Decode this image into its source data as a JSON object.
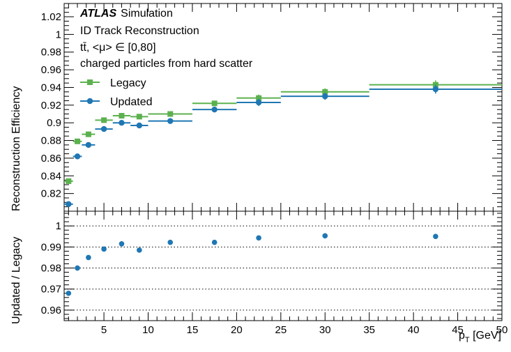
{
  "chart_data": {
    "type": "scatter",
    "annotations": {
      "experiment": "ATLAS",
      "label": "Simulation",
      "line1": "ID Track Reconstruction",
      "line2": "tt̄, <μ> ∈ [0,80]",
      "line3": "charged particles from hard scatter"
    },
    "x_bins": [
      [
        0.5,
        1.5
      ],
      [
        1.5,
        2.5
      ],
      [
        2.5,
        4
      ],
      [
        4,
        6
      ],
      [
        6,
        8
      ],
      [
        8,
        10
      ],
      [
        10,
        15
      ],
      [
        15,
        20
      ],
      [
        20,
        25
      ],
      [
        25,
        35
      ],
      [
        35,
        50
      ]
    ],
    "top": {
      "ylabel": "Reconstruction Efficiency",
      "ylim": [
        0.8,
        1.035
      ],
      "yticks": [
        "0.82",
        "0.84",
        "0.86",
        "0.88",
        "0.9",
        "0.92",
        "0.94",
        "0.96",
        "0.98",
        "1",
        "1.02"
      ],
      "series": [
        {
          "name": "Legacy",
          "color": "#5cb14f",
          "marker": "square",
          "values": [
            0.834,
            0.879,
            0.887,
            0.903,
            0.908,
            0.907,
            0.91,
            0.922,
            0.928,
            0.935,
            0.943
          ],
          "errors": [
            0.002,
            0.002,
            0.002,
            0.002,
            0.002,
            0.003,
            0.002,
            0.003,
            0.004,
            0.004,
            0.005
          ]
        },
        {
          "name": "Updated",
          "color": "#1f77b4",
          "marker": "circle",
          "values": [
            0.808,
            0.862,
            0.875,
            0.893,
            0.9,
            0.897,
            0.902,
            0.915,
            0.923,
            0.93,
            0.938
          ],
          "errors": [
            0.002,
            0.002,
            0.002,
            0.002,
            0.002,
            0.003,
            0.002,
            0.003,
            0.004,
            0.004,
            0.005
          ]
        }
      ]
    },
    "bottom": {
      "ylabel": "Updated / Legacy",
      "ylim": [
        0.955,
        1.007
      ],
      "yticks": [
        "0.96",
        "0.97",
        "0.98",
        "0.99",
        "1"
      ],
      "gridlines": [
        0.96,
        0.97,
        0.98,
        0.99,
        1.0
      ],
      "color": "#1f77b4",
      "x": [
        1.0,
        2.0,
        3.25,
        5.0,
        7.0,
        9.0,
        12.5,
        17.5,
        22.5,
        30.0,
        42.5
      ],
      "values": [
        0.968,
        0.98,
        0.985,
        0.989,
        0.9915,
        0.9885,
        0.9922,
        0.9922,
        0.9943,
        0.9953,
        0.995
      ],
      "errors": [
        0.001,
        0.0006,
        0.0006,
        0.0006,
        0.0006,
        0.0008,
        0.0006,
        0.0007,
        0.0008,
        0.0008,
        0.0012
      ]
    },
    "xlabel_main": "p",
    "xlabel_sub": "T",
    "xlabel_unit": " [GeV]",
    "xlim": [
      0.5,
      50
    ],
    "xticks": [
      "5",
      "10",
      "15",
      "20",
      "25",
      "30",
      "35",
      "40",
      "45",
      "50"
    ]
  }
}
